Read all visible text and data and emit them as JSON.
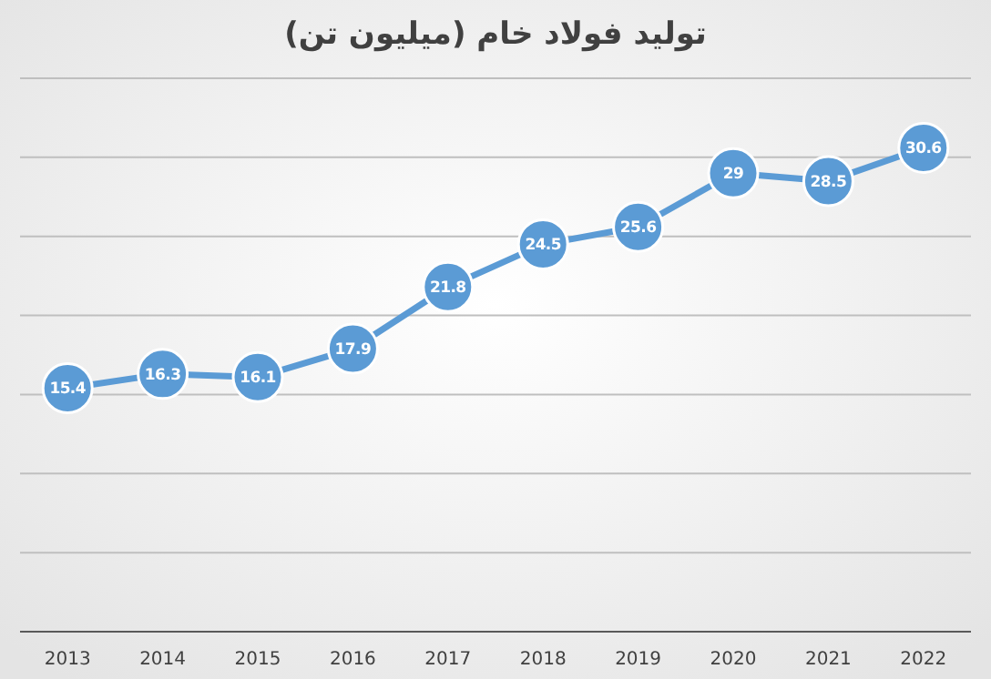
{
  "chart_data": {
    "type": "line",
    "title": "توليد فولاد خام (ميليون تن)",
    "categories": [
      "2013",
      "2014",
      "2015",
      "2016",
      "2017",
      "2018",
      "2019",
      "2020",
      "2021",
      "2022"
    ],
    "values": [
      15.4,
      16.3,
      16.1,
      17.9,
      21.8,
      24.5,
      25.6,
      29,
      28.5,
      30.6
    ],
    "color": "#5b9bd5",
    "marker": "circle",
    "data_labels": true,
    "grid": "y",
    "ylim": [
      0,
      35
    ],
    "yticks": [
      {
        "value": 0,
        "label": null
      },
      {
        "value": 5,
        "label": null
      },
      {
        "value": 10,
        "label": null
      },
      {
        "value": 15,
        "label": null
      },
      {
        "value": 20,
        "label": null
      },
      {
        "value": 25,
        "label": null
      },
      {
        "value": 30,
        "label": null
      },
      {
        "value": 35,
        "label": null
      }
    ]
  }
}
